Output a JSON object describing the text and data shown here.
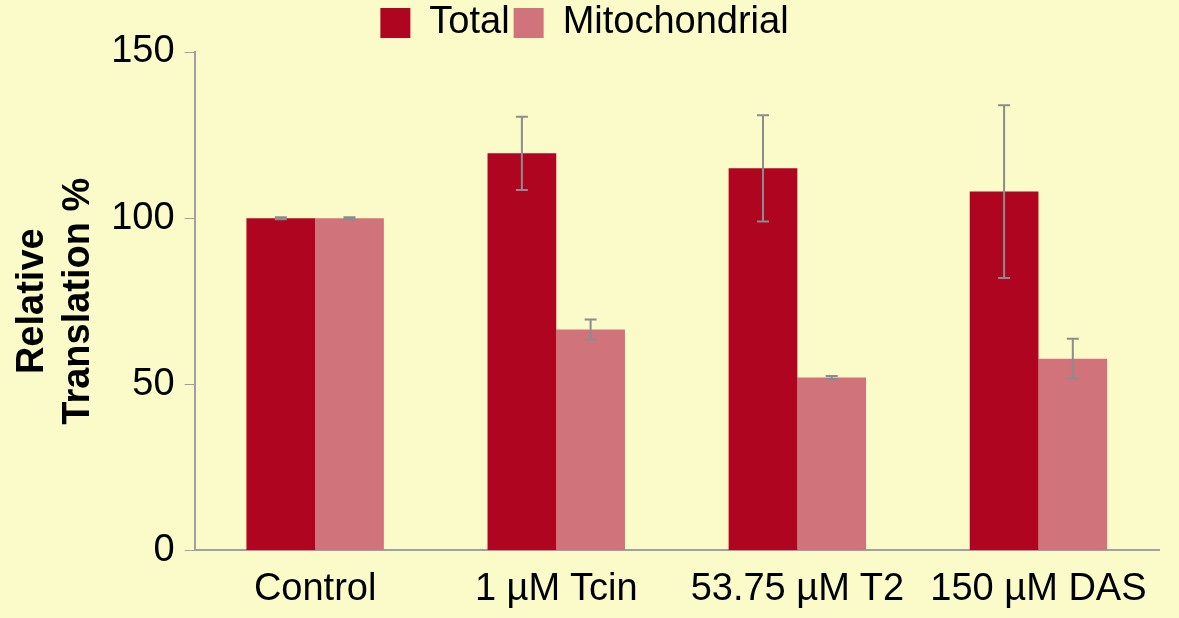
{
  "chart_data": {
    "type": "bar",
    "ylabel": "Relative Translation %",
    "categories": [
      "Control",
      "1 µM Tcin",
      "53.75 µM T2",
      "150 µM DAS"
    ],
    "series": [
      {
        "name": "Total",
        "color": "#b00520",
        "values": [
          100,
          119.5,
          115,
          108
        ],
        "errors": [
          0.3,
          11,
          16,
          26
        ]
      },
      {
        "name": "Mitochondrial",
        "color": "#d0737a",
        "values": [
          100,
          66.5,
          52,
          57.7
        ],
        "errors": [
          0.3,
          3,
          0.5,
          6
        ]
      }
    ],
    "ylim": [
      0,
      150
    ],
    "yticks": [
      0,
      50,
      100,
      150
    ],
    "grid": false,
    "legend": "top"
  }
}
